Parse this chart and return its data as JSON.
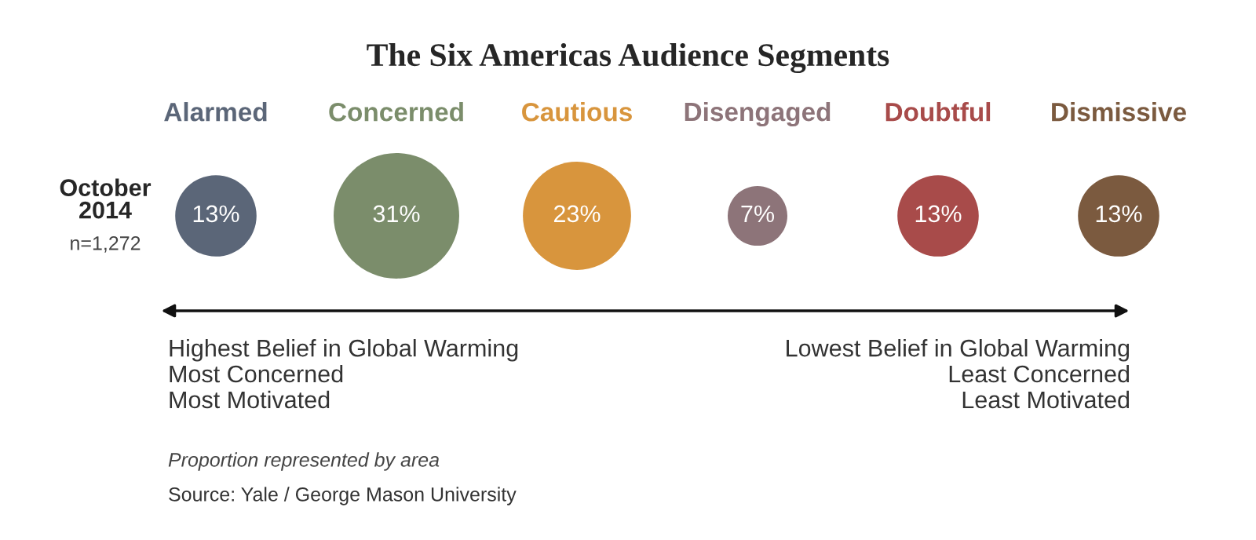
{
  "chart_data": {
    "type": "other",
    "title": "The Six Americas Audience Segments",
    "categories": [
      "Alarmed",
      "Concerned",
      "Cautious",
      "Disengaged",
      "Doubtful",
      "Dismissive"
    ],
    "values": [
      13,
      31,
      23,
      7,
      13,
      13
    ],
    "value_labels": [
      "13%",
      "31%",
      "23%",
      "7%",
      "13%",
      "13%"
    ],
    "colors": [
      "#5b6678",
      "#7b8d6b",
      "#d8953d",
      "#8d7479",
      "#a84b4a",
      "#7b5a3f"
    ],
    "annotations": [
      "October\n2014",
      "n=1,272",
      "Highest Belief in Global Warming\nMost Concerned\nMost Motivated",
      "Lowest Belief in Global Warming\nLeast Concerned\nLeast Motivated",
      "Proportion represented by area",
      "Source: Yale / George Mason University"
    ],
    "legend": false
  }
}
